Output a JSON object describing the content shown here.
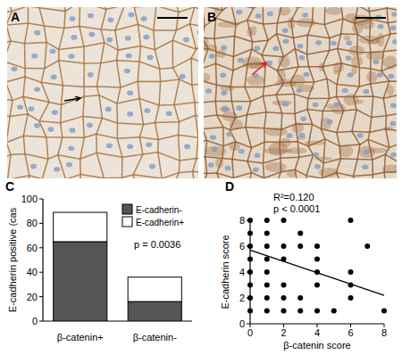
{
  "panel_labels": [
    "A",
    "B",
    "C",
    "D"
  ],
  "chart_data": [
    {
      "type": "bar",
      "stacked": true,
      "categories": [
        "β-catenin+",
        "β-catenin-"
      ],
      "y_label": "E-cadherin positive (cas",
      "series": [
        {
          "name": "E-cadherin-",
          "color": "#555555",
          "values": [
            65,
            16
          ]
        },
        {
          "name": "E-cadherin+",
          "color": "#ffffff",
          "values": [
            24,
            20
          ]
        }
      ],
      "ylim": [
        0,
        100
      ],
      "yticks": [
        0,
        20,
        40,
        60,
        80,
        100
      ],
      "legend": "top-right",
      "annotations": [
        "p = 0.0036"
      ]
    },
    {
      "type": "scatter",
      "x_label": "β-catenin score",
      "y_label": "E-cadherin score",
      "series": [
        {
          "type": "scatter",
          "marker": "circle",
          "color": "#000000",
          "x": [
            0,
            0,
            0,
            0,
            0,
            0,
            0,
            0,
            1,
            1,
            1,
            1,
            1,
            1,
            1,
            1,
            2,
            2,
            2,
            2,
            2,
            2,
            3,
            3,
            3,
            3,
            4,
            4,
            4,
            4,
            4,
            5,
            6,
            6,
            6,
            6,
            7,
            8
          ],
          "values": [
            8,
            7,
            6,
            5,
            4,
            3,
            2,
            1,
            8,
            7,
            6,
            5,
            4,
            3,
            2,
            1,
            8,
            6,
            5,
            3,
            2,
            1,
            7,
            6,
            2,
            1,
            6,
            5,
            4,
            3,
            1,
            1,
            8,
            4,
            3,
            2,
            6,
            1
          ]
        },
        {
          "type": "line",
          "line_style": "solid",
          "color": "#000000",
          "x": [
            0,
            8
          ],
          "values": [
            5.7,
            2.2
          ]
        }
      ],
      "xlim": [
        0,
        8
      ],
      "ylim": [
        0,
        8
      ],
      "xticks": [
        0,
        2,
        4,
        6,
        8
      ],
      "yticks": [
        0,
        2,
        4,
        6,
        8
      ],
      "annotations": [
        "R²=0.120",
        "p < 0.0001"
      ]
    }
  ]
}
